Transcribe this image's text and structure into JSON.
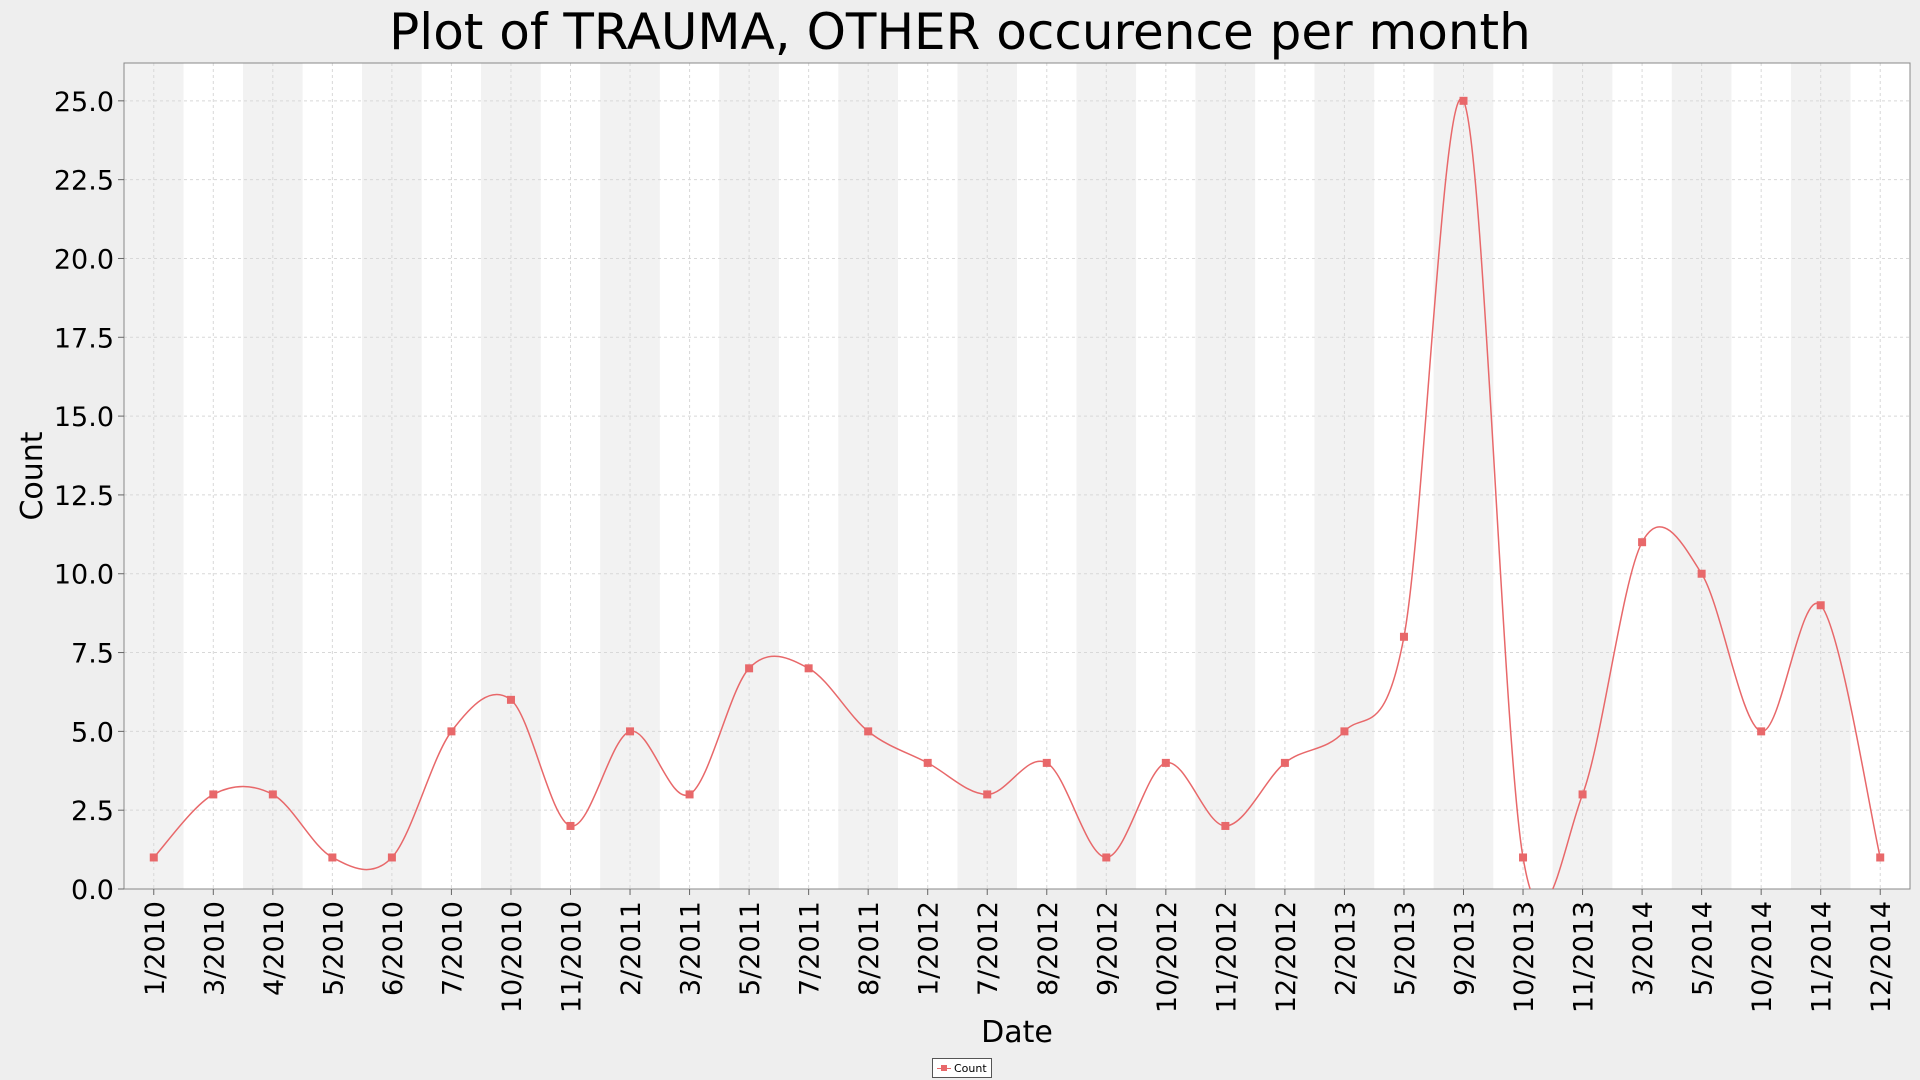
{
  "chart_data": {
    "type": "line",
    "title": "Plot of TRAUMA, OTHER occurence per month",
    "xlabel": "Date",
    "ylabel": "Count",
    "ylim": [
      0,
      26.2
    ],
    "y_ticks": [
      "0.0",
      "2.5",
      "5.0",
      "7.5",
      "10.0",
      "12.5",
      "15.0",
      "17.5",
      "20.0",
      "22.5",
      "25.0"
    ],
    "grid": true,
    "interpolation": "spline",
    "legend_position": "bottom-center",
    "categories": [
      "1/2010",
      "3/2010",
      "4/2010",
      "5/2010",
      "6/2010",
      "7/2010",
      "10/2010",
      "11/2010",
      "2/2011",
      "3/2011",
      "5/2011",
      "7/2011",
      "8/2011",
      "1/2012",
      "7/2012",
      "8/2012",
      "9/2012",
      "10/2012",
      "11/2012",
      "12/2012",
      "2/2013",
      "5/2013",
      "9/2013",
      "10/2013",
      "11/2013",
      "3/2014",
      "5/2014",
      "10/2014",
      "11/2014",
      "12/2014"
    ],
    "series": [
      {
        "name": "Count",
        "color": "#e8686a",
        "values": [
          1,
          3,
          3,
          1,
          1,
          5,
          6,
          2,
          5,
          3,
          7,
          7,
          5,
          4,
          3,
          4,
          1,
          4,
          2,
          4,
          5,
          8,
          25,
          1,
          3,
          11,
          10,
          5,
          9,
          1
        ]
      }
    ]
  }
}
